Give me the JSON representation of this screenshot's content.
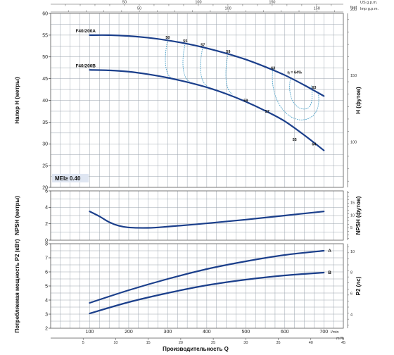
{
  "colors": {
    "curve": "#1b3f8b",
    "efficiency": "#4aa0c8",
    "grid": "#9aa3ad",
    "badge": "#dfe6f2"
  },
  "top_axes": {
    "us_label": "US g.p.m.",
    "imp_label": "Imp g.p.m.",
    "us_ticks": [
      "50",
      "100",
      "150"
    ],
    "imp_ticks": [
      "50",
      "100",
      "150"
    ]
  },
  "chart_data": [
    {
      "type": "line",
      "ylabel": "Напор H (метры)",
      "y2label": "H (футов)",
      "y2_unit": "feet",
      "xlim": [
        0,
        750
      ],
      "ylim": [
        20,
        60
      ],
      "y2_ticks": [
        "100",
        "150",
        "200"
      ],
      "badge": "MEI≥ 0.40",
      "series": [
        {
          "name": "F40/200A",
          "x": [
            100,
            150,
            200,
            250,
            300,
            350,
            400,
            450,
            500,
            550,
            600,
            650,
            700
          ],
          "y": [
            55.0,
            55.0,
            54.8,
            54.4,
            53.8,
            53.0,
            52.0,
            50.8,
            49.4,
            47.7,
            45.8,
            43.5,
            41.0
          ]
        },
        {
          "name": "F40/200B",
          "x": [
            100,
            150,
            200,
            250,
            300,
            350,
            400,
            450,
            500,
            550,
            600,
            650,
            700
          ],
          "y": [
            47.0,
            46.9,
            46.6,
            46.0,
            45.2,
            44.2,
            43.0,
            41.5,
            39.7,
            37.6,
            35.2,
            32.0,
            28.5
          ]
        }
      ],
      "efficiency": [
        {
          "label": "50",
          "q": 300,
          "h": 54.0,
          "bottom": 45.0
        },
        {
          "label": "55",
          "q": 345,
          "h": 53.2,
          "bottom": 44.3
        },
        {
          "label": "57",
          "q": 390,
          "h": 52.3,
          "bottom": 43.3
        },
        {
          "label": "59",
          "q": 455,
          "h": 50.8,
          "bottom": 41.4
        },
        {
          "label": "63",
          "q": 570,
          "h": 47.0
        },
        {
          "label": "η = 64%",
          "q": 625,
          "h": 46.0
        }
      ],
      "efficiency_lower_labels": [
        {
          "label": "59",
          "q": 500,
          "h": 39.5
        },
        {
          "label": "57",
          "q": 555,
          "h": 37.0
        },
        {
          "label": "55",
          "q": 625,
          "h": 30.5
        },
        {
          "label": "64",
          "q": 675,
          "h": 29.5
        },
        {
          "label": "63",
          "q": 675,
          "h": 42.5
        }
      ]
    },
    {
      "type": "line",
      "ylabel": "NPSH (метры)",
      "y2label": "NPSH (футов)",
      "xlim": [
        0,
        750
      ],
      "ylim": [
        0,
        6
      ],
      "y2_ticks": [
        "5",
        "10",
        "15"
      ],
      "series": [
        {
          "name": "NPSH",
          "x": [
            100,
            125,
            150,
            175,
            200,
            250,
            300,
            400,
            500,
            600,
            700
          ],
          "y": [
            3.5,
            2.9,
            2.2,
            1.75,
            1.55,
            1.5,
            1.65,
            2.05,
            2.5,
            3.0,
            3.5
          ]
        }
      ]
    },
    {
      "type": "line",
      "ylabel": "Потребляемая мощность P2 (кВт)",
      "y2label": "P2 (лс)",
      "xlabel": "Производительность Q",
      "x_unit": "l/min",
      "x2_unit": "m³/h",
      "xlim": [
        0,
        750
      ],
      "ylim": [
        2,
        8
      ],
      "x_ticks": [
        "100",
        "200",
        "300",
        "400",
        "500",
        "600",
        "700"
      ],
      "x2_ticks": [
        "5",
        "10",
        "15",
        "20",
        "25",
        "30",
        "35",
        "40",
        "45"
      ],
      "y2_ticks": [
        "4",
        "6",
        "8",
        "10"
      ],
      "series": [
        {
          "name": "A",
          "x": [
            100,
            200,
            300,
            400,
            500,
            600,
            700
          ],
          "y": [
            3.8,
            4.7,
            5.5,
            6.2,
            6.75,
            7.2,
            7.5
          ]
        },
        {
          "name": "B",
          "x": [
            100,
            200,
            300,
            400,
            500,
            600,
            700
          ],
          "y": [
            3.05,
            3.85,
            4.5,
            5.05,
            5.45,
            5.75,
            5.95
          ]
        }
      ]
    }
  ]
}
